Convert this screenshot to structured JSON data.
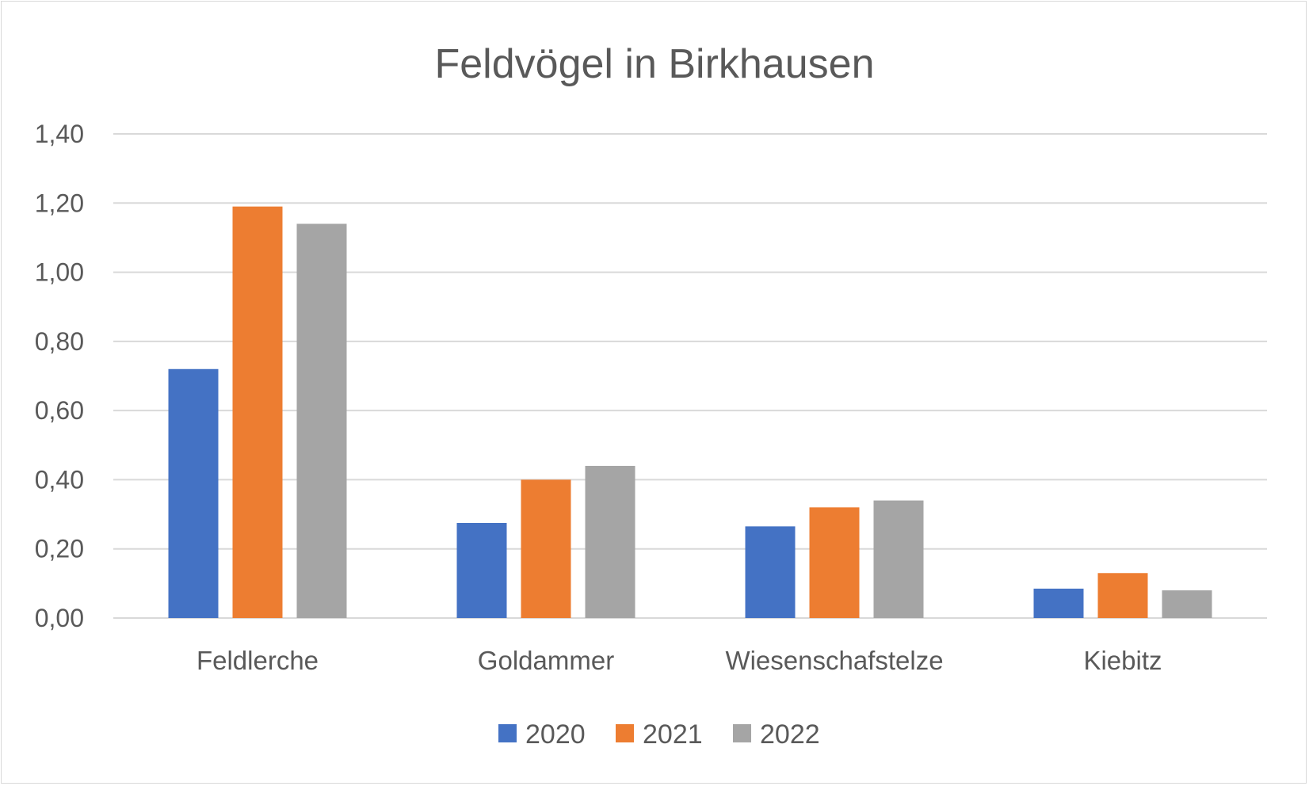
{
  "chart_data": {
    "type": "bar",
    "title": "Feldvögel in Birkhausen",
    "xlabel": "",
    "ylabel": "",
    "categories": [
      "Feldlerche",
      "Goldammer",
      "Wiesenschafstelze",
      "Kiebitz"
    ],
    "series": [
      {
        "name": "2020",
        "color": "#4472c4",
        "values": [
          0.72,
          0.275,
          0.265,
          0.085
        ]
      },
      {
        "name": "2021",
        "color": "#ed7d31",
        "values": [
          1.19,
          0.4,
          0.32,
          0.13
        ]
      },
      {
        "name": "2022",
        "color": "#a5a5a5",
        "values": [
          1.14,
          0.44,
          0.34,
          0.08
        ]
      }
    ],
    "ylim": [
      0,
      1.4
    ],
    "yticks": [
      0,
      0.2,
      0.4,
      0.6,
      0.8,
      1.0,
      1.2,
      1.4
    ],
    "ytick_labels": [
      "0,00",
      "0,20",
      "0,40",
      "0,60",
      "0,80",
      "1,00",
      "1,20",
      "1,40"
    ],
    "grid": true,
    "legend_position": "bottom"
  }
}
